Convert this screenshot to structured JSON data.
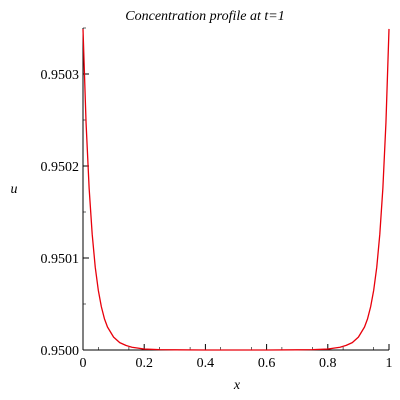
{
  "chart_data": {
    "type": "line",
    "title": "Concentration profile at t=1",
    "xlabel": "x",
    "ylabel": "u",
    "xlim": [
      0,
      1
    ],
    "ylim": [
      0.95,
      0.95035
    ],
    "x_ticks": [
      0,
      0.2,
      0.4,
      0.6,
      0.8,
      1
    ],
    "x_tick_labels": [
      "0",
      "0.2",
      "0.4",
      "0.6",
      "0.8",
      "1"
    ],
    "y_ticks": [
      0.95,
      0.9501,
      0.9502,
      0.9503
    ],
    "y_tick_labels": [
      "0.9500",
      "0.9501",
      "0.9502",
      "0.9503"
    ],
    "grid": false,
    "series": [
      {
        "color": "#e8000b",
        "x": [
          0,
          0.01,
          0.02,
          0.03,
          0.04,
          0.05,
          0.06,
          0.07,
          0.08,
          0.1,
          0.12,
          0.14,
          0.16,
          0.18,
          0.2,
          0.25,
          0.3,
          0.4,
          0.5,
          0.6,
          0.7,
          0.75,
          0.8,
          0.82,
          0.84,
          0.86,
          0.88,
          0.9,
          0.92,
          0.93,
          0.94,
          0.95,
          0.96,
          0.97,
          0.98,
          0.99,
          1
        ],
        "y": [
          0.950349,
          0.950247,
          0.950176,
          0.950126,
          0.95009,
          0.950065,
          0.950047,
          0.950034,
          0.950025,
          0.950014,
          0.950008,
          0.950005,
          0.950003,
          0.950002,
          0.950001,
          0.9500004,
          0.9500002,
          0.95,
          0.95,
          0.95,
          0.9500002,
          0.9500004,
          0.950001,
          0.950002,
          0.950003,
          0.950005,
          0.950008,
          0.950014,
          0.950025,
          0.950034,
          0.950047,
          0.950065,
          0.95009,
          0.950126,
          0.950176,
          0.950247,
          0.950349
        ]
      }
    ]
  }
}
